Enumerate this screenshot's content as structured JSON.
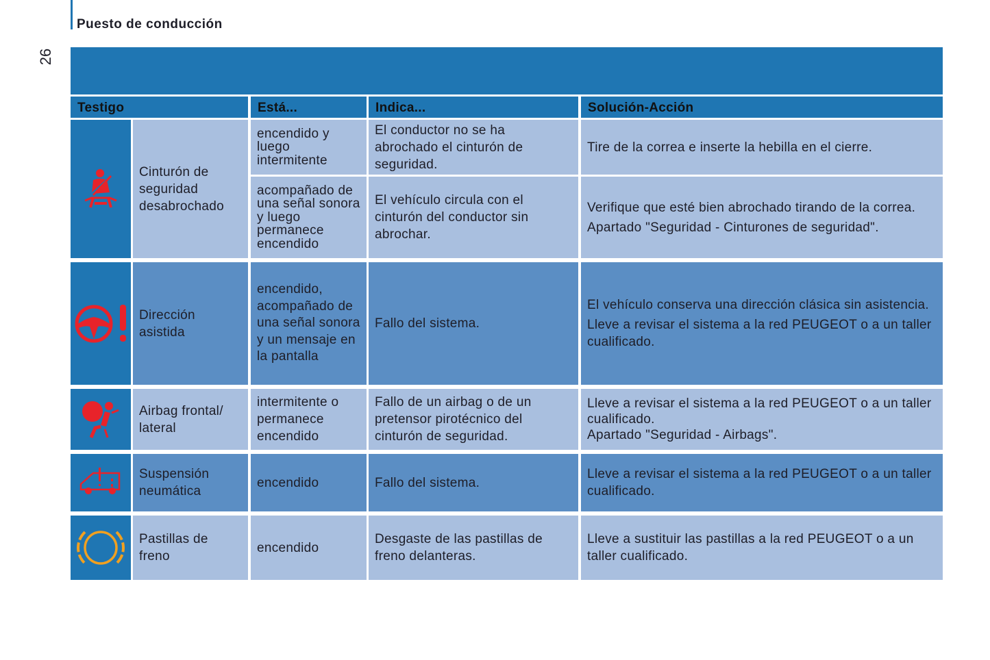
{
  "page": {
    "section_title": "Puesto de conducción",
    "page_number": "26"
  },
  "table": {
    "headers": [
      "Testigo",
      "Está...",
      "Indica...",
      "Solución-Acción"
    ],
    "rows": [
      {
        "icon": "seatbelt-icon",
        "icon_color": "#e8232a",
        "name": "Cinturón de seguridad desabrochado",
        "sub": [
          {
            "esta": "encendido y luego intermitente",
            "indica": "El conductor no se ha abrochado el cinturón de seguridad.",
            "solucion": [
              "Tire de la correa e inserte la hebilla en el cierre."
            ]
          },
          {
            "esta": "acompañado de una señal sonora y luego permanece encendido",
            "indica": "El vehículo circula con el cinturón del conductor sin abrochar.",
            "solucion": [
              "Verifique que esté bien abrochado tirando de la correa.",
              "Apartado \"Seguridad - Cinturones de seguridad\"."
            ]
          }
        ]
      },
      {
        "icon": "power-steering-warning-icon",
        "icon_color": "#e8232a",
        "name": "Dirección asistida",
        "esta": "encendido, acompañado de una señal sonora y un mensaje en la pantalla",
        "indica": "Fallo del sistema.",
        "solucion": [
          "El vehículo conserva una dirección clásica sin asistencia.",
          "Lleve a revisar el sistema a la red PEUGEOT o a un taller cualificado."
        ]
      },
      {
        "icon": "airbag-icon",
        "icon_color": "#e8232a",
        "name": "Airbag frontal/ lateral",
        "esta": "intermitente o permanece encendido",
        "indica": "Fallo de un airbag o de un pretensor pirotécnico del cinturón de seguridad.",
        "solucion": [
          "Lleve a revisar el sistema a la red PEUGEOT o a un taller cualificado.",
          "Apartado \"Seguridad - Airbags\"."
        ]
      },
      {
        "icon": "air-suspension-icon",
        "icon_color": "#e8232a",
        "name": "Suspensión neumática",
        "esta": "encendido",
        "indica": "Fallo del sistema.",
        "solucion": [
          "Lleve a revisar el sistema a la red PEUGEOT o a un taller cualificado."
        ]
      },
      {
        "icon": "brake-pads-icon",
        "icon_color": "#f0a020",
        "name": "Pastillas de freno",
        "esta": "encendido",
        "indica": "Desgaste de las pastillas de freno delanteras.",
        "solucion": [
          "Lleve a sustituir las pastillas a la red PEUGEOT o a un taller cualificado."
        ]
      }
    ]
  }
}
